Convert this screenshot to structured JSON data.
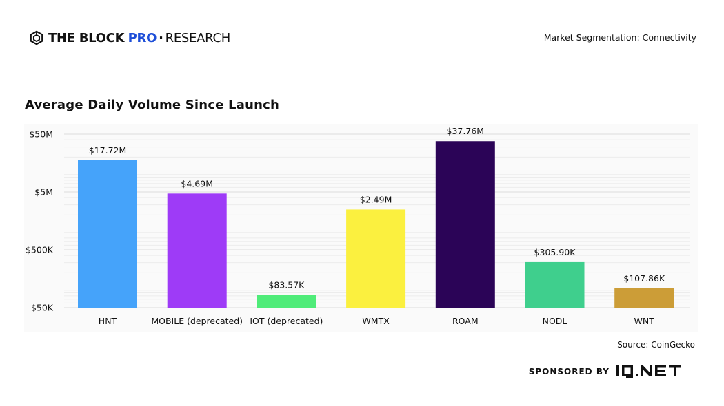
{
  "header": {
    "brand_main": "THE BLOCK",
    "brand_pro": "PRO",
    "brand_sep": "·",
    "brand_research": "RESEARCH",
    "segment": "Market Segmentation: Connectivity"
  },
  "title": "Average Daily Volume Since Launch",
  "footer": {
    "source": "Source: CoinGecko",
    "sponsored_by": "SPONSORED BY",
    "sponsor_name": "IO.NET"
  },
  "chart_data": {
    "type": "bar",
    "title": "Average Daily Volume Since Launch",
    "xlabel": "",
    "ylabel": "",
    "scale": "log",
    "ylim": [
      50000,
      50000000
    ],
    "y_ticks": [
      {
        "value": 50000000,
        "label": "$50M"
      },
      {
        "value": 5000000,
        "label": "$5M"
      },
      {
        "value": 500000,
        "label": "$500K"
      },
      {
        "value": 50000,
        "label": "$50K"
      }
    ],
    "categories": [
      "HNT",
      "MOBILE (deprecated)",
      "IOT (deprecated)",
      "WMTX",
      "ROAM",
      "NODL",
      "WNT"
    ],
    "values": [
      17720000,
      4690000,
      83570,
      2490000,
      37760000,
      305900,
      107860
    ],
    "value_labels": [
      "$17.72M",
      "$4.69M",
      "$83.57K",
      "$2.49M",
      "$37.76M",
      "$305.90K",
      "$107.86K"
    ],
    "colors": [
      "#45a3fa",
      "#9e3bf7",
      "#4fec79",
      "#fbf03f",
      "#2b0457",
      "#3fcf8d",
      "#cc9d37"
    ],
    "grid": true,
    "legend": "none"
  }
}
